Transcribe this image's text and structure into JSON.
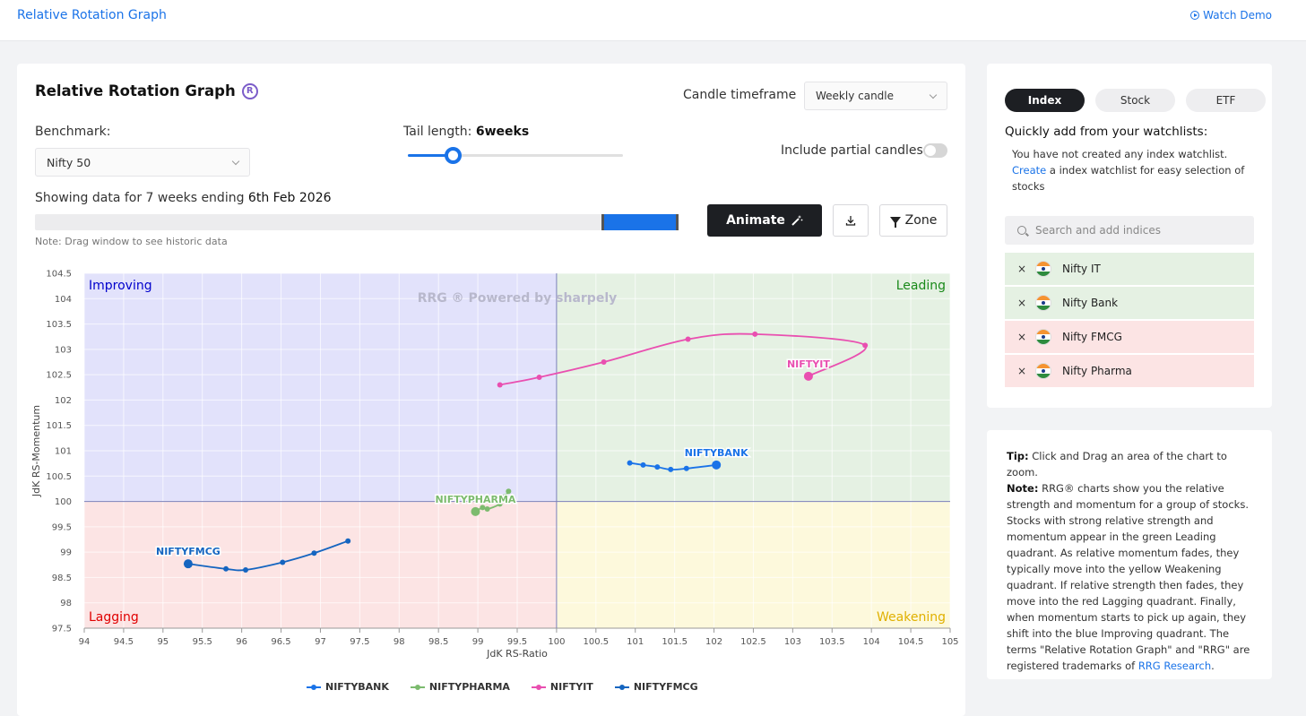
{
  "header": {
    "app_title": "Relative Rotation Graph",
    "watch_demo": "Watch Demo"
  },
  "main": {
    "title": "Relative Rotation Graph",
    "reg_mark": "R",
    "candle_label": "Candle timeframe",
    "candle_value": "Weekly candle",
    "benchmark_label": "Benchmark:",
    "benchmark_value": "Nifty 50",
    "tail_label": "Tail length:",
    "tail_value": "6weeks",
    "tail_slider": {
      "min": 1,
      "max": 25,
      "value": 6
    },
    "partial_label": "Include partial candles",
    "partial_enabled": false,
    "showing_prefix": "Showing data for 7 weeks ending",
    "showing_date": "6th Feb 2026",
    "range_window": {
      "start": 0.88,
      "end": 1.0
    },
    "range_note": "Note: Drag window to see historic data",
    "animate_label": "Animate",
    "zone_label": "Zone"
  },
  "chart_data": {
    "type": "scatter",
    "title": "",
    "watermark": "RRG ®  Powered by   sharpely",
    "xlabel": "JdK RS-Ratio",
    "ylabel": "JdK RS-Momentum",
    "xlim": [
      94,
      105
    ],
    "ylim": [
      97.5,
      104.5
    ],
    "xticks": [
      "94",
      "94.5",
      "95",
      "95.5",
      "96",
      "96.5",
      "97",
      "97.5",
      "98",
      "98.5",
      "99",
      "99.5",
      "100",
      "100.5",
      "101",
      "101.5",
      "102",
      "102.5",
      "103",
      "103.5",
      "104",
      "104.5",
      "105"
    ],
    "yticks": [
      "97.5",
      "98",
      "98.5",
      "99",
      "99.5",
      "100",
      "100.5",
      "101",
      "101.5",
      "102",
      "102.5",
      "103",
      "103.5",
      "104",
      "104.5"
    ],
    "center": [
      100,
      100
    ],
    "quadrants": {
      "improving": {
        "label": "Improving",
        "color": "#0000cc",
        "fill": "#e2e2fb"
      },
      "leading": {
        "label": "Leading",
        "color": "#1a8a1a",
        "fill": "#e5f1e3"
      },
      "lagging": {
        "label": "Lagging",
        "color": "#e00000",
        "fill": "#fce4e4"
      },
      "weakening": {
        "label": "Weakening",
        "color": "#e0b000",
        "fill": "#fdf9dc"
      }
    },
    "series": [
      {
        "name": "NIFTYBANK",
        "color": "#1a73e8",
        "x": [
          100.93,
          101.1,
          101.28,
          101.45,
          101.65,
          102.03
        ],
        "y": [
          100.76,
          100.72,
          100.68,
          100.63,
          100.65,
          100.72
        ]
      },
      {
        "name": "NIFTYPHARMA",
        "color": "#7cbb6e",
        "x": [
          99.39,
          99.35,
          99.28,
          99.12,
          99.06,
          98.97
        ],
        "y": [
          100.2,
          100.1,
          99.95,
          99.85,
          99.88,
          99.8
        ]
      },
      {
        "name": "NIFTYIT",
        "color": "#e94fb0",
        "x": [
          99.28,
          99.78,
          100.6,
          101.67,
          102.52,
          103.92,
          103.2
        ],
        "y": [
          102.3,
          102.45,
          102.75,
          103.2,
          103.3,
          103.08,
          102.47
        ]
      },
      {
        "name": "NIFTYFMCG",
        "color": "#1565c0",
        "x": [
          97.35,
          96.92,
          96.52,
          96.05,
          95.8,
          95.32
        ],
        "y": [
          99.22,
          98.98,
          98.8,
          98.65,
          98.67,
          98.77
        ]
      }
    ],
    "legend_position": "bottom"
  },
  "side": {
    "tabs": [
      "Index",
      "Stock",
      "ETF"
    ],
    "active_tab": "Index",
    "quick_title": "Quickly add from your watchlists:",
    "quick_note_line1": "You have not created any index watchlist.",
    "quick_note_link": "Create",
    "quick_note_rest": " a index watchlist for easy selection of stocks",
    "search_placeholder": "Search and add indices",
    "watchlist": [
      {
        "name": "Nifty IT",
        "bg": "#e5f1e3"
      },
      {
        "name": "Nifty Bank",
        "bg": "#e5f1e3"
      },
      {
        "name": "Nifty FMCG",
        "bg": "#fce4e4"
      },
      {
        "name": "Nifty Pharma",
        "bg": "#fce4e4"
      }
    ],
    "remove_symbol": "×"
  },
  "tip": {
    "tip_label": "Tip:",
    "tip_text": " Click and Drag an area of the chart to zoom.",
    "note_label": "Note:",
    "note_text": " RRG® charts show you the relative strength and momentum for a group of stocks. Stocks with strong relative strength and momentum appear in the green Leading quadrant. As relative momentum fades, they typically move into the yellow Weakening quadrant. If relative strength then fades, they move into the red Lagging quadrant. Finally, when momentum starts to pick up again, they shift into the blue Improving quadrant. The terms \"Relative Rotation Graph\" and \"RRG\" are registered trademarks of ",
    "note_link": "RRG Research",
    "note_end": "."
  }
}
